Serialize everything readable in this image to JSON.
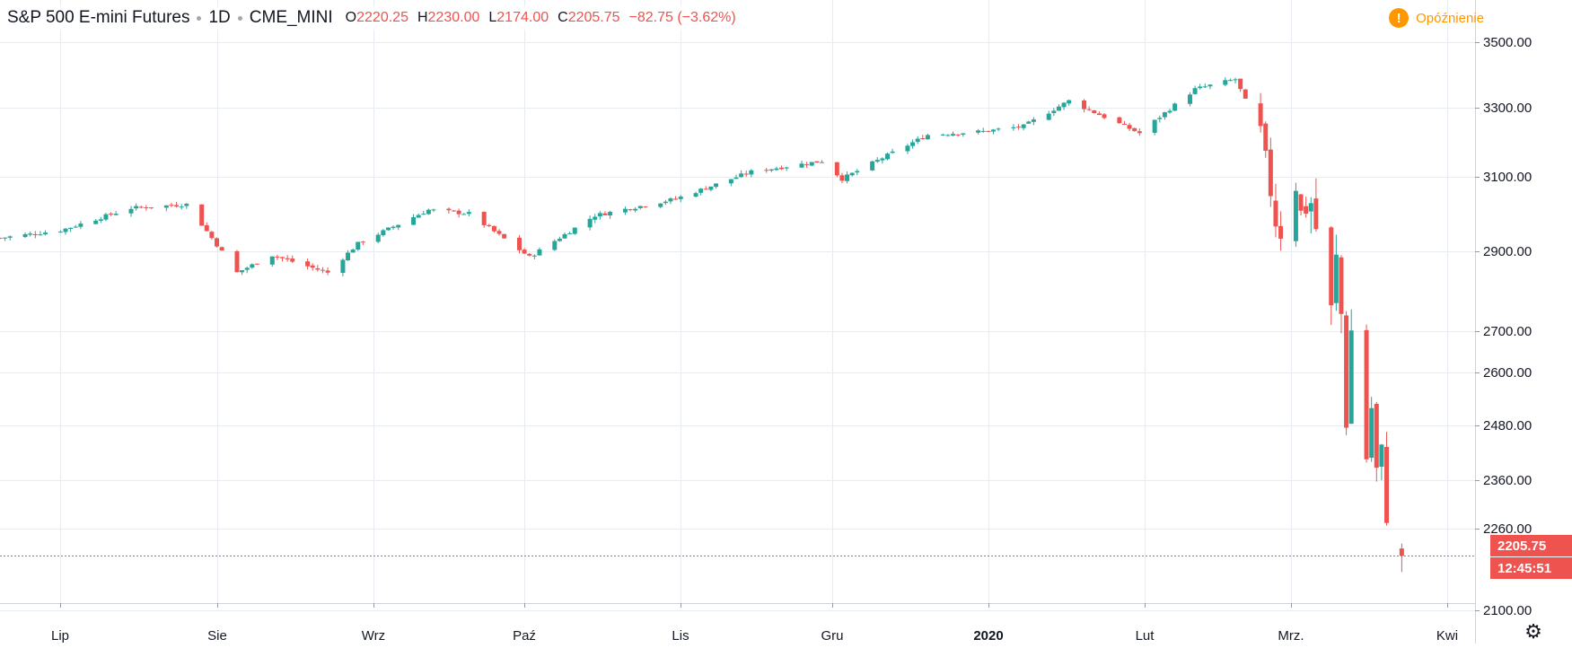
{
  "header": {
    "symbol": "S&P 500 E-mini Futures",
    "interval": "1D",
    "exchange": "CME_MINI",
    "open_key": "O",
    "open": "2220.25",
    "high_key": "H",
    "high": "2230.00",
    "low_key": "L",
    "low": "2174.00",
    "close_key": "C",
    "close": "2205.75",
    "change": "−82.75 (−3.62%)",
    "delay_label": "Opóźnienie",
    "delay_icon": "!"
  },
  "price_scale": {
    "last_price": "2205.75",
    "countdown": "12:45:51"
  },
  "colors": {
    "up": "#26a69a",
    "down": "#ef5350",
    "grid": "#e6ecf2",
    "axis_text": "#131722",
    "warning": "#ff9800"
  },
  "icons": {
    "settings": "gear-icon",
    "delay": "exclamation-icon"
  },
  "chart_data": {
    "type": "candlestick",
    "y_scale": "log",
    "ylim": [
      2060,
      3600
    ],
    "y_ticks": [
      2100,
      2260,
      2360,
      2480,
      2600,
      2700,
      2900,
      3100,
      3300,
      3500
    ],
    "y_tick_labels": [
      "2100.00",
      "2260.00",
      "2360.00",
      "2480.00",
      "2600.00",
      "2700.00",
      "2900.00",
      "3100.00",
      "3300.00",
      "3500.00"
    ],
    "x_range": [
      "2019-06-19",
      "2020-04-06"
    ],
    "x_ticks": [
      "2019-07-01",
      "2019-08-01",
      "2019-09-01",
      "2019-10-01",
      "2019-11-01",
      "2019-12-01",
      "2020-01-01",
      "2020-02-01",
      "2020-03-01",
      "2020-04-01"
    ],
    "x_tick_labels": [
      "Lip",
      "Sie",
      "Wrz",
      "Paź",
      "Lis",
      "Gru",
      "2020",
      "Lut",
      "Mrz.",
      "Kwi"
    ],
    "bold_x_tick": "2020",
    "last_price_line": 2205.75,
    "grid": true,
    "anchors": [
      [
        "2019-06-19",
        2935
      ],
      [
        "2019-07-01",
        2955
      ],
      [
        "2019-07-15",
        3015
      ],
      [
        "2019-07-26",
        3025
      ],
      [
        "2019-08-05",
        2845
      ],
      [
        "2019-08-12",
        2890
      ],
      [
        "2019-08-23",
        2845
      ],
      [
        "2019-08-29",
        2920
      ],
      [
        "2019-09-12",
        3010
      ],
      [
        "2019-09-20",
        3000
      ],
      [
        "2019-10-02",
        2885
      ],
      [
        "2019-10-15",
        2995
      ],
      [
        "2019-10-31",
        3040
      ],
      [
        "2019-11-15",
        3115
      ],
      [
        "2019-11-29",
        3145
      ],
      [
        "2019-12-03",
        3095
      ],
      [
        "2019-12-20",
        3220
      ],
      [
        "2019-12-31",
        3230
      ],
      [
        "2020-01-08",
        3245
      ],
      [
        "2020-01-17",
        3320
      ],
      [
        "2020-01-31",
        3225
      ],
      [
        "2020-02-11",
        3355
      ],
      [
        "2020-02-19",
        3385
      ],
      [
        "2020-02-24",
        3225
      ],
      [
        "2020-02-27",
        2980
      ],
      [
        "2020-02-28",
        2950
      ],
      [
        "2020-03-02",
        3080
      ],
      [
        "2020-03-03",
        3000
      ],
      [
        "2020-03-05",
        3030
      ],
      [
        "2020-03-09",
        2750
      ],
      [
        "2020-03-10",
        2880
      ],
      [
        "2020-03-11",
        2740
      ],
      [
        "2020-03-12",
        2490
      ],
      [
        "2020-03-13",
        2700
      ],
      [
        "2020-03-16",
        2410
      ],
      [
        "2020-03-17",
        2520
      ],
      [
        "2020-03-18",
        2380
      ],
      [
        "2020-03-19",
        2420
      ],
      [
        "2020-03-20",
        2290
      ],
      [
        "2020-03-23",
        2205.75
      ]
    ]
  }
}
